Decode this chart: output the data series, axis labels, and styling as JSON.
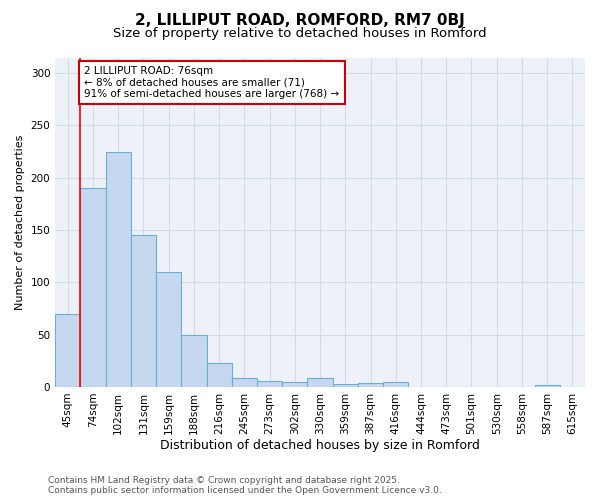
{
  "title": "2, LILLIPUT ROAD, ROMFORD, RM7 0BJ",
  "subtitle": "Size of property relative to detached houses in Romford",
  "xlabel": "Distribution of detached houses by size in Romford",
  "ylabel": "Number of detached properties",
  "categories": [
    "45sqm",
    "74sqm",
    "102sqm",
    "131sqm",
    "159sqm",
    "188sqm",
    "216sqm",
    "245sqm",
    "273sqm",
    "302sqm",
    "330sqm",
    "359sqm",
    "387sqm",
    "416sqm",
    "444sqm",
    "473sqm",
    "501sqm",
    "530sqm",
    "558sqm",
    "587sqm",
    "615sqm"
  ],
  "values": [
    70,
    190,
    225,
    145,
    110,
    50,
    23,
    9,
    6,
    5,
    9,
    3,
    4,
    5,
    0,
    0,
    0,
    0,
    0,
    2,
    0
  ],
  "bar_color": "#c5d8f0",
  "bar_edge_color": "#6aaed6",
  "background_color": "#eef2f8",
  "grid_color": "#d0daea",
  "red_line_index": 1,
  "annotation_text": "2 LILLIPUT ROAD: 76sqm\n← 8% of detached houses are smaller (71)\n91% of semi-detached houses are larger (768) →",
  "annotation_box_color": "#ffffff",
  "annotation_box_edge_color": "#cc0000",
  "ylim": [
    0,
    315
  ],
  "yticks": [
    0,
    50,
    100,
    150,
    200,
    250,
    300
  ],
  "footnote": "Contains HM Land Registry data © Crown copyright and database right 2025.\nContains public sector information licensed under the Open Government Licence v3.0.",
  "title_fontsize": 11,
  "subtitle_fontsize": 9.5,
  "xlabel_fontsize": 9,
  "ylabel_fontsize": 8,
  "tick_fontsize": 7.5,
  "annotation_fontsize": 7.5,
  "footnote_fontsize": 6.5
}
